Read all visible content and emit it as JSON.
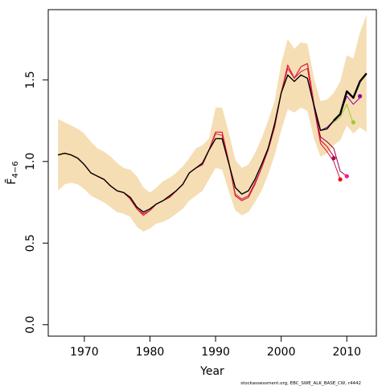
{
  "chart_data": {
    "type": "line",
    "title": "",
    "xlabel": "Year",
    "ylabel": "F̄",
    "ylabel_subscript": "4−6",
    "xlim": [
      1964.5,
      2014.5
    ],
    "ylim": [
      -0.07,
      1.93
    ],
    "x_ticks": [
      1970,
      1980,
      1990,
      2000,
      2010
    ],
    "x_tick_labels": [
      "1970",
      "1980",
      "1990",
      "2000",
      "2010"
    ],
    "y_ticks": [
      0.0,
      0.5,
      1.0,
      1.5
    ],
    "y_tick_labels": [
      "0.0",
      "0.5",
      "1.0",
      "1.5"
    ],
    "grid": false,
    "legend": "none",
    "footer": "stockassessment.org, EBC_SWE_ALK_BASE_CW, r4442",
    "colors": {
      "band": "#f5deb3",
      "main": "#000000",
      "retro": "#dc143c",
      "retro_dark": "#8b0045",
      "green": "#9acd32",
      "pink": "#ff1493",
      "purple": "#990099"
    },
    "band": {
      "x": [
        1966,
        1967,
        1968,
        1969,
        1970,
        1971,
        1972,
        1973,
        1974,
        1975,
        1976,
        1977,
        1978,
        1979,
        1980,
        1981,
        1982,
        1983,
        1984,
        1985,
        1986,
        1987,
        1988,
        1989,
        1990,
        1991,
        1992,
        1993,
        1994,
        1995,
        1996,
        1997,
        1998,
        1999,
        2000,
        2001,
        2002,
        2003,
        2004,
        2005,
        2006,
        2007,
        2008,
        2009,
        2010,
        2011,
        2012,
        2013
      ],
      "lower": [
        0.82,
        0.86,
        0.87,
        0.86,
        0.83,
        0.79,
        0.77,
        0.75,
        0.72,
        0.69,
        0.68,
        0.66,
        0.6,
        0.57,
        0.59,
        0.62,
        0.63,
        0.65,
        0.68,
        0.71,
        0.76,
        0.79,
        0.82,
        0.89,
        0.96,
        0.95,
        0.82,
        0.7,
        0.67,
        0.69,
        0.75,
        0.82,
        0.92,
        1.04,
        1.19,
        1.32,
        1.3,
        1.33,
        1.31,
        1.14,
        1.03,
        1.05,
        1.1,
        1.13,
        1.22,
        1.17,
        1.21,
        1.18
      ],
      "upper": [
        1.26,
        1.24,
        1.22,
        1.2,
        1.17,
        1.12,
        1.08,
        1.06,
        1.03,
        0.99,
        0.96,
        0.95,
        0.91,
        0.84,
        0.81,
        0.84,
        0.88,
        0.9,
        0.93,
        0.97,
        1.02,
        1.08,
        1.1,
        1.14,
        1.33,
        1.33,
        1.18,
        1.01,
        0.96,
        0.98,
        1.05,
        1.14,
        1.25,
        1.37,
        1.6,
        1.75,
        1.69,
        1.73,
        1.72,
        1.51,
        1.37,
        1.38,
        1.42,
        1.49,
        1.65,
        1.63,
        1.79,
        1.9
      ]
    },
    "series": [
      {
        "name": "",
        "color": "#dc143c",
        "width": 1.2,
        "x": [
          1966,
          1967,
          1968,
          1969,
          1970,
          1971,
          1972,
          1973,
          1974,
          1975,
          1976,
          1977,
          1978,
          1979,
          1980,
          1981,
          1982,
          1983,
          1984,
          1985,
          1986,
          1987,
          1988,
          1989,
          1990,
          1991,
          1992,
          1993,
          1994,
          1995,
          1996,
          1997,
          1998,
          1999,
          2000,
          2001,
          2002,
          2003,
          2004,
          2005,
          2006,
          2007,
          2008
        ],
        "y": [
          1.04,
          1.05,
          1.04,
          1.02,
          0.98,
          0.93,
          0.91,
          0.89,
          0.85,
          0.82,
          0.81,
          0.77,
          0.71,
          0.67,
          0.7,
          0.74,
          0.76,
          0.78,
          0.82,
          0.86,
          0.93,
          0.96,
          0.98,
          1.07,
          1.18,
          1.18,
          1.0,
          0.79,
          0.76,
          0.78,
          0.86,
          0.96,
          1.07,
          1.21,
          1.42,
          1.59,
          1.51,
          1.58,
          1.6,
          1.35,
          1.13,
          1.09,
          1.03
        ]
      },
      {
        "name": "",
        "color": "#dc143c",
        "width": 1.0,
        "x": [
          1966,
          1967,
          1968,
          1969,
          1970,
          1971,
          1972,
          1973,
          1974,
          1975,
          1976,
          1977,
          1978,
          1979,
          1980,
          1981,
          1982,
          1983,
          1984,
          1985,
          1986,
          1987,
          1988,
          1989,
          1990,
          1991,
          1992,
          1993,
          1994,
          1995,
          1996,
          1997,
          1998,
          1999,
          2000,
          2001,
          2002,
          2003,
          2004,
          2005,
          2006,
          2007,
          2008,
          2009
        ],
        "y": [
          1.04,
          1.05,
          1.04,
          1.02,
          0.98,
          0.93,
          0.91,
          0.89,
          0.85,
          0.82,
          0.81,
          0.77,
          0.71,
          0.68,
          0.7,
          0.74,
          0.76,
          0.78,
          0.82,
          0.86,
          0.93,
          0.96,
          0.98,
          1.07,
          1.17,
          1.16,
          0.99,
          0.8,
          0.77,
          0.79,
          0.87,
          0.96,
          1.07,
          1.21,
          1.42,
          1.57,
          1.51,
          1.55,
          1.57,
          1.33,
          1.11,
          1.06,
          1.0,
          0.89
        ]
      },
      {
        "name": "",
        "color": "#8b0045",
        "width": 1.0,
        "x": [
          2005,
          2006,
          2007,
          2008,
          2009,
          2010
        ],
        "y": [
          1.33,
          1.15,
          1.12,
          1.08,
          0.94,
          0.91
        ]
      },
      {
        "name": "",
        "color": "#9acd32",
        "width": 1.0,
        "x": [
          2005,
          2006,
          2007,
          2008,
          2009,
          2010,
          2011
        ],
        "y": [
          1.34,
          1.19,
          1.21,
          1.24,
          1.27,
          1.35,
          1.23
        ]
      },
      {
        "name": "",
        "color": "#990099",
        "width": 1.0,
        "x": [
          2005,
          2006,
          2007,
          2008,
          2009,
          2010,
          2011,
          2012
        ],
        "y": [
          1.35,
          1.19,
          1.21,
          1.25,
          1.29,
          1.4,
          1.35,
          1.39
        ]
      },
      {
        "name": "",
        "color": "#000000",
        "width": 1.4,
        "x": [
          1966,
          1967,
          1968,
          1969,
          1970,
          1971,
          1972,
          1973,
          1974,
          1975,
          1976,
          1977,
          1978,
          1979,
          1980,
          1981,
          1982,
          1983,
          1984,
          1985,
          1986,
          1987,
          1988,
          1989,
          1990,
          1991,
          1992,
          1993,
          1994,
          1995,
          1996,
          1997,
          1998,
          1999,
          2000,
          2001,
          2002,
          2003,
          2004,
          2005,
          2006,
          2007,
          2008
        ],
        "y": [
          1.04,
          1.05,
          1.04,
          1.02,
          0.98,
          0.93,
          0.91,
          0.89,
          0.85,
          0.82,
          0.81,
          0.78,
          0.72,
          0.69,
          0.71,
          0.74,
          0.76,
          0.79,
          0.82,
          0.86,
          0.93,
          0.96,
          0.99,
          1.07,
          1.14,
          1.14,
          0.99,
          0.84,
          0.8,
          0.82,
          0.89,
          0.98,
          1.08,
          1.23,
          1.42,
          1.53,
          1.49,
          1.53,
          1.51,
          1.34,
          1.19,
          1.2,
          1.25
        ]
      },
      {
        "name": "",
        "color": "#000000",
        "width": 2.4,
        "x": [
          2008,
          2009,
          2010,
          2011,
          2012,
          2013
        ],
        "y": [
          1.25,
          1.29,
          1.43,
          1.39,
          1.49,
          1.54
        ]
      }
    ],
    "end_points": [
      {
        "x": 2008,
        "y": 1.02,
        "color": "#b0005a"
      },
      {
        "x": 2009,
        "y": 0.89,
        "color": "#ee1111"
      },
      {
        "x": 2010,
        "y": 0.91,
        "color": "#ff1493"
      },
      {
        "x": 2011,
        "y": 1.24,
        "color": "#9acd32"
      },
      {
        "x": 2012,
        "y": 1.4,
        "color": "#990099"
      }
    ]
  }
}
